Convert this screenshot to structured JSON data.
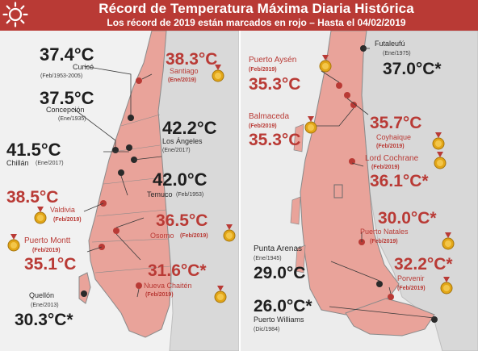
{
  "header": {
    "title": "Récord de Temperatura Máxima Diaria Histórica",
    "subtitle": "Los récord de 2019 están marcados en rojo – Hasta el 04/02/2019",
    "sun_icon": "sun-icon"
  },
  "colors": {
    "brand_red": "#b93a35",
    "record_2019_red": "#b93a35",
    "historic_black": "#1e1e1e",
    "medal_gold": "#e2a617"
  },
  "icons": {
    "medal": "gold-medal-icon",
    "city_marker_2019": "red-dot-marker",
    "city_marker_historic": "black-dot-marker"
  },
  "records": {
    "curico": {
      "temp": "37.4°C",
      "city": "Curicó",
      "date": "(Feb/1953-2005)"
    },
    "santiago": {
      "temp": "38.3°C",
      "city": "Santiago",
      "date": "(Ene/2019)"
    },
    "concepcion": {
      "temp": "37.5°C",
      "city": "Concepción",
      "date": "(Ene/1935)"
    },
    "los_angeles": {
      "temp": "42.2°C",
      "city": "Los Ángeles",
      "date": "(Ene/2017)"
    },
    "chillan": {
      "temp": "41.5°C",
      "city": "Chillán",
      "date": "(Ene/2017)"
    },
    "temuco": {
      "temp": "42.0°C",
      "city": "Temuco",
      "date": "(Feb/1953)"
    },
    "valdivia": {
      "temp": "38.5°C",
      "city": "Valdivia",
      "date": "(Feb/2019)"
    },
    "osorno": {
      "temp": "36.5°C",
      "city": "Osorno",
      "date": "(Feb/2019)"
    },
    "puerto_montt": {
      "temp": "35.1°C",
      "city": "Puerto Montt",
      "date": "(Feb/2019)"
    },
    "nueva_chaiten": {
      "temp": "31.6°C*",
      "city": "Nueva Chaitén",
      "date": "(Feb/2019)"
    },
    "quellon": {
      "temp": "30.3°C*",
      "city": "Quellón",
      "date": "(Ene/2013)"
    },
    "futaleufu": {
      "temp": "37.0°C*",
      "city": "Futaleufú",
      "date": "(Ene/1975)"
    },
    "puerto_aysen": {
      "temp": "35.3°C",
      "city": "Puerto Aysén",
      "date": "(Feb/2019)"
    },
    "balmaceda": {
      "temp": "35.3°C",
      "city": "Balmaceda",
      "date": "(Feb/2019)"
    },
    "coyhaique": {
      "temp": "35.7°C",
      "city": "Coyhaique",
      "date": "(Feb/2019)"
    },
    "lord_cochrane": {
      "temp": "36.1°C*",
      "city": "Lord Cochrane",
      "date": "(Feb/2019)"
    },
    "puerto_natales": {
      "temp": "30.0°C*",
      "city": "Puerto Natales",
      "date": "(Feb/2019)"
    },
    "punta_arenas": {
      "temp": "29.0°C",
      "city": "Punta Arenas",
      "date": "(Ene/1945)"
    },
    "porvenir": {
      "temp": "32.2°C*",
      "city": "Porvenir",
      "date": "(Feb/2019)"
    },
    "puerto_williams": {
      "temp": "26.0°C*",
      "city": "Puerto Williams",
      "date": "(Dic/1984)"
    }
  }
}
